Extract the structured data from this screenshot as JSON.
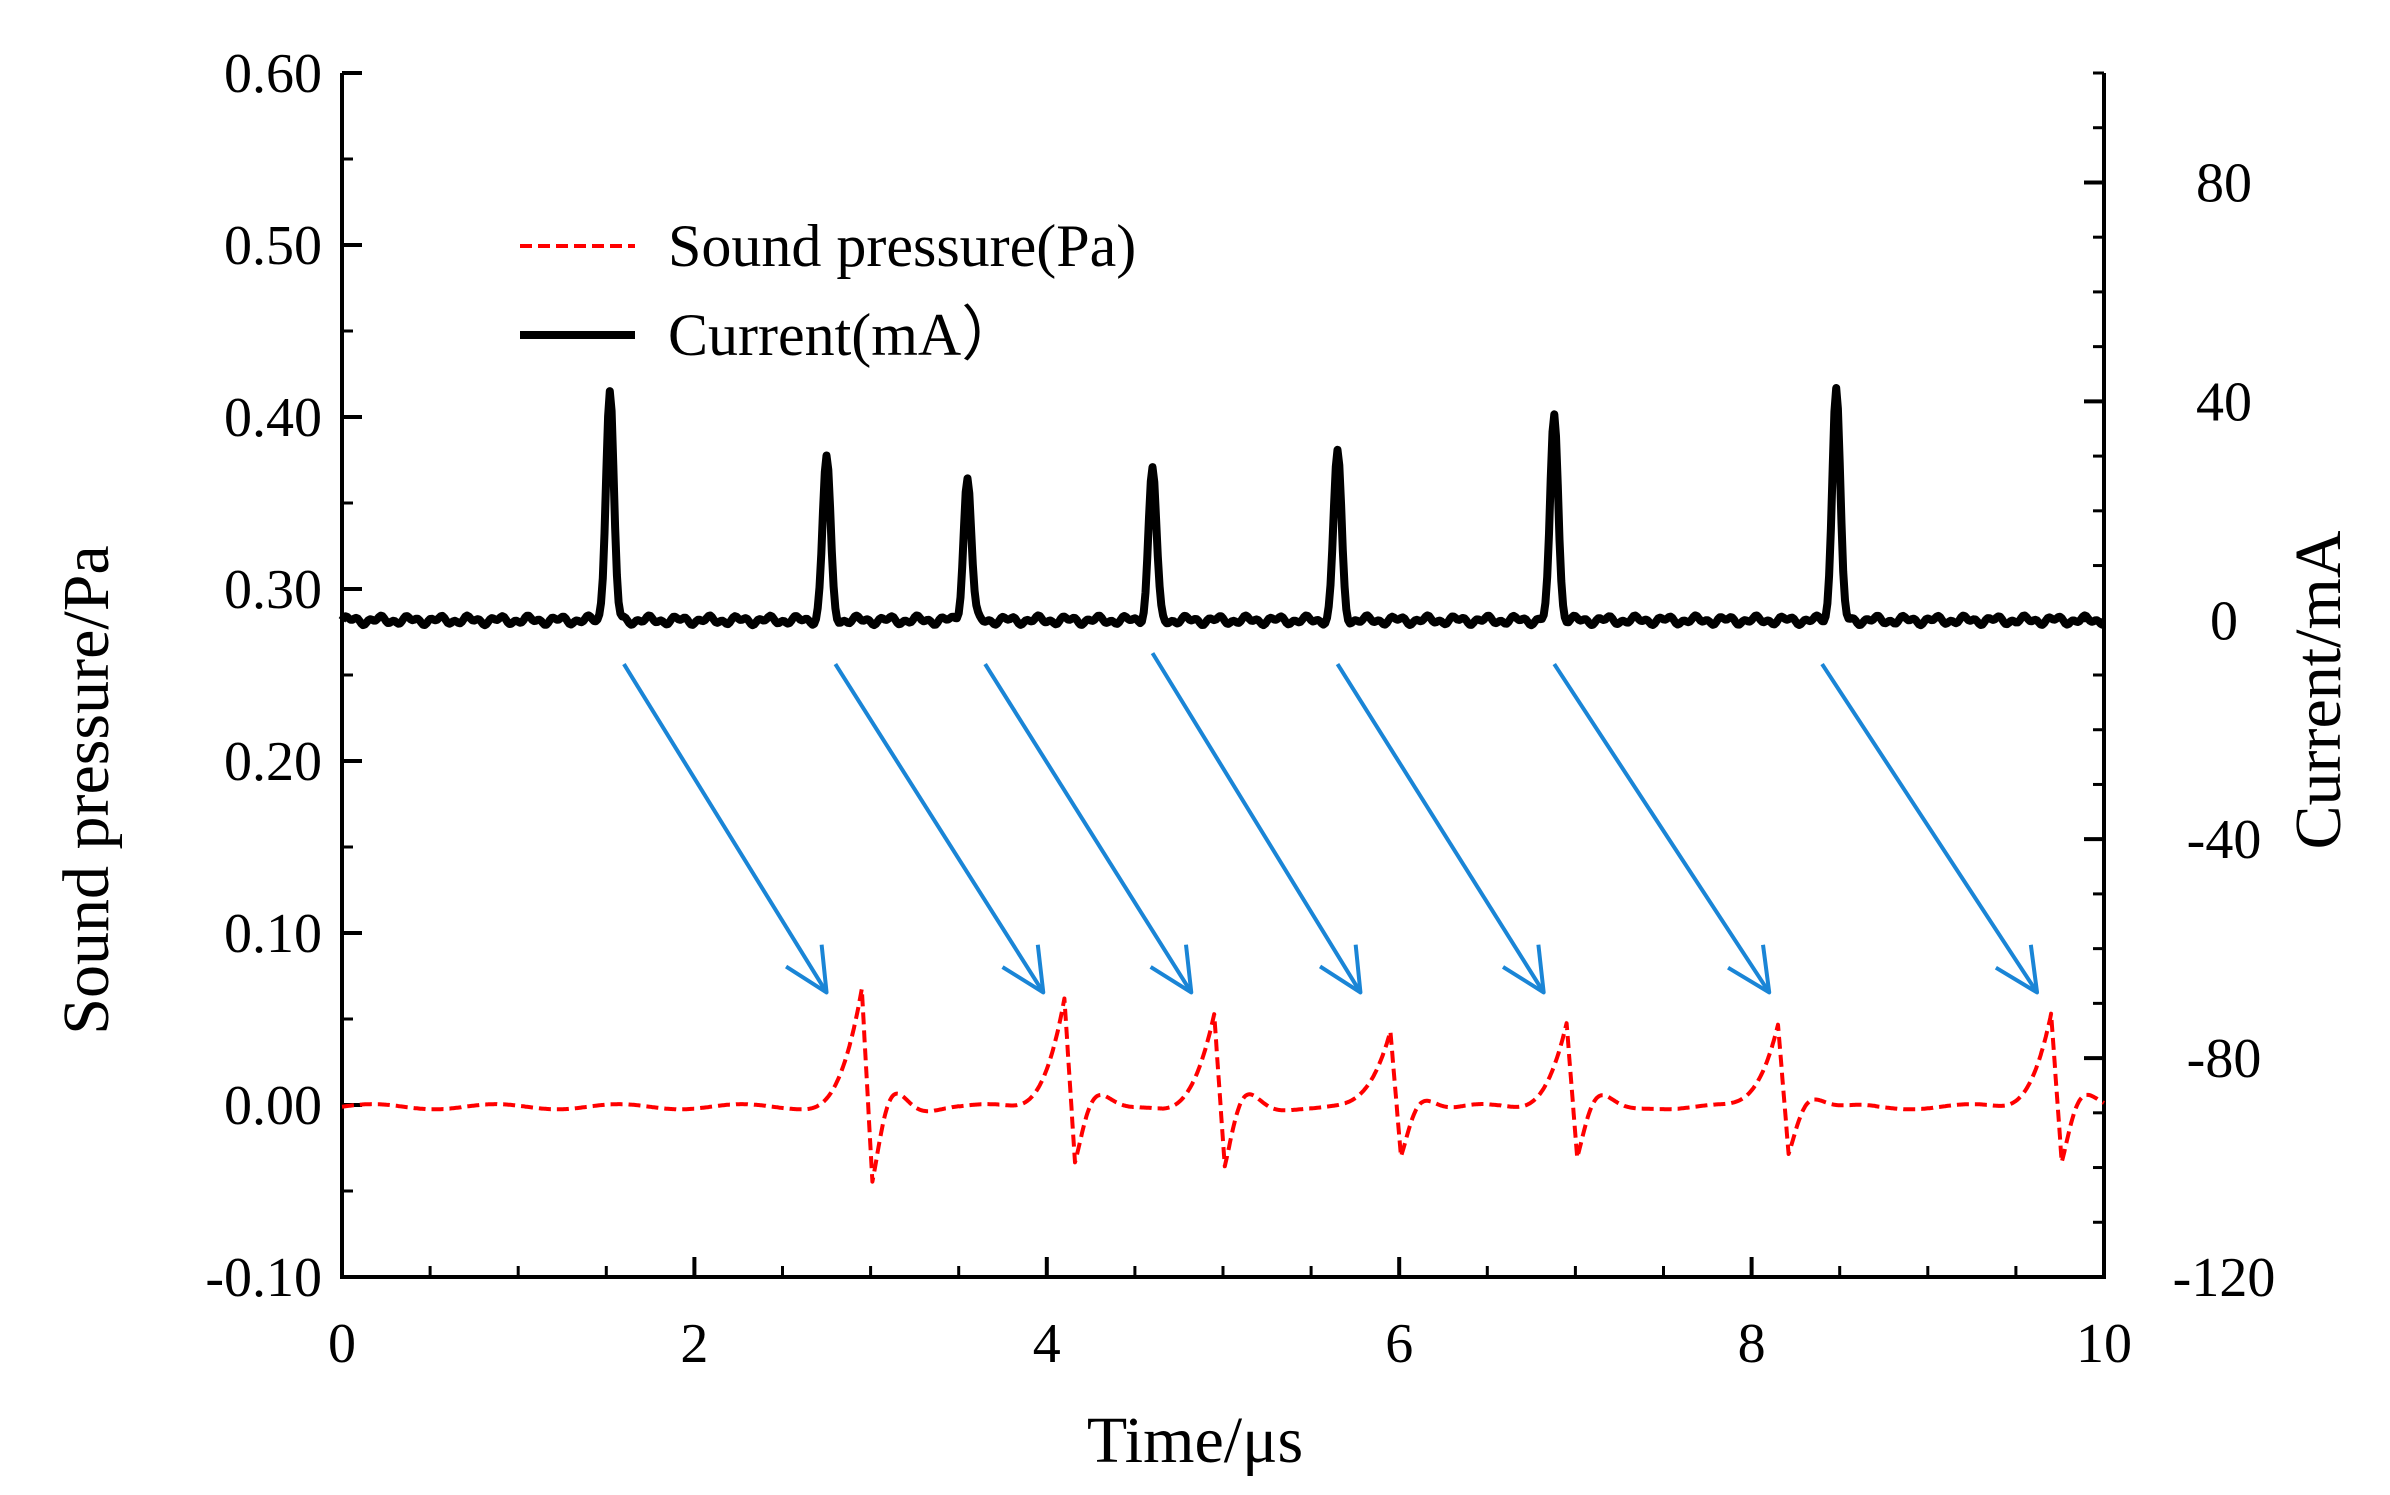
{
  "chart_data": {
    "type": "line",
    "title": "",
    "xlabel": "Time/μs",
    "ylabel_left": "Sound pressure/Pa",
    "ylabel_right": "Current/mA",
    "xlim": [
      0,
      10
    ],
    "ylim_left": [
      -0.1,
      0.6
    ],
    "ylim_right": [
      -120,
      100
    ],
    "x_ticks": [
      "0",
      "2",
      "4",
      "6",
      "8",
      "10"
    ],
    "y_left_ticks": [
      "-0.10",
      "0.00",
      "0.10",
      "0.20",
      "0.30",
      "0.40",
      "0.50",
      "0.60"
    ],
    "y_right_ticks": [
      "-120",
      "-80",
      "-40",
      "0",
      "40",
      "80"
    ],
    "grid": false,
    "legend_position": "top-left",
    "series": [
      {
        "name": "Sound pressure(Pa)",
        "axis": "left",
        "color": "#ff0000",
        "style": "dashed",
        "baseline": 0.0,
        "pulses": [
          {
            "t": 2.95,
            "peak": 0.067,
            "trough": -0.045
          },
          {
            "t": 4.1,
            "peak": 0.064,
            "trough": -0.032
          },
          {
            "t": 4.95,
            "peak": 0.053,
            "trough": -0.036
          },
          {
            "t": 5.95,
            "peak": 0.044,
            "trough": -0.028
          },
          {
            "t": 6.95,
            "peak": 0.049,
            "trough": -0.03
          },
          {
            "t": 8.15,
            "peak": 0.049,
            "trough": -0.026
          },
          {
            "t": 9.7,
            "peak": 0.055,
            "trough": -0.032
          }
        ]
      },
      {
        "name": "Current(mA）",
        "axis": "right",
        "color": "#000000",
        "style": "solid",
        "baseline": 0,
        "spikes": [
          {
            "t": 1.52,
            "peak": 42
          },
          {
            "t": 2.75,
            "peak": 30
          },
          {
            "t": 3.55,
            "peak": 26
          },
          {
            "t": 4.6,
            "peak": 28
          },
          {
            "t": 5.65,
            "peak": 31
          },
          {
            "t": 6.88,
            "peak": 38
          },
          {
            "t": 8.48,
            "peak": 43
          }
        ]
      }
    ],
    "annotations": {
      "type": "arrows",
      "color": "#1a85d6",
      "description_count": 7,
      "pairs": [
        {
          "from": [
            1.6,
            -8
          ],
          "to": [
            2.75,
            -68
          ]
        },
        {
          "from": [
            2.8,
            -8
          ],
          "to": [
            3.98,
            -68
          ]
        },
        {
          "from": [
            3.65,
            -8
          ],
          "to": [
            4.82,
            -68
          ]
        },
        {
          "from": [
            4.6,
            -6
          ],
          "to": [
            5.78,
            -68
          ]
        },
        {
          "from": [
            5.65,
            -8
          ],
          "to": [
            6.82,
            -68
          ]
        },
        {
          "from": [
            6.88,
            -8
          ],
          "to": [
            8.1,
            -68
          ]
        },
        {
          "from": [
            8.4,
            -8
          ],
          "to": [
            9.62,
            -68
          ]
        }
      ]
    }
  }
}
